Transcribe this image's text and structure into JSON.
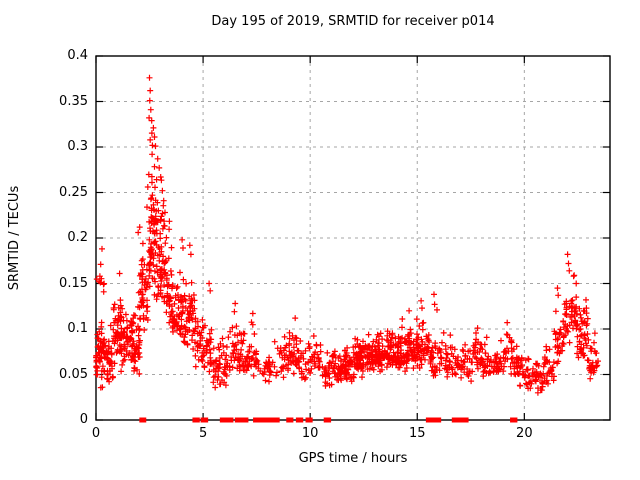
{
  "title": "Day 195 of 2019, SRMTID for receiver p014",
  "x_axis": {
    "label": "GPS time / hours",
    "tick_labels": [
      "0",
      "5",
      "10",
      "15",
      "20"
    ],
    "min": 0,
    "max": 24
  },
  "y_axis": {
    "label": "SRMTID / TECUs",
    "tick_labels": [
      "0",
      "0.05",
      "0.1",
      "0.15",
      "0.2",
      "0.25",
      "0.3",
      "0.35",
      "0.4"
    ],
    "min": 0,
    "max": 0.4
  },
  "colors": {
    "marker": "#ff0000",
    "grid": "#a6a6a6",
    "frame": "#000000",
    "background": "#ffffff",
    "text": "#000000"
  },
  "chart_data": {
    "type": "scatter",
    "title": "Day 195 of 2019, SRMTID for receiver p014",
    "xlabel": "GPS time / hours",
    "ylabel": "SRMTID / TECUs",
    "xlim": [
      0,
      24
    ],
    "ylim": [
      0,
      0.4
    ],
    "grid": true,
    "legend": "none",
    "marker": "plus",
    "zero_marker": "filled-square",
    "description": "Dense red + scatter of SRMTID vs GPS time; peak ~0.38 TECUs near hour 2.5-3, secondary rise ~0.18 near hour 22, baseline band 0.04-0.10 through midday; zero-valued samples drawn as filled squares on the x-axis.",
    "density_bands_format": [
      "x_start_hours",
      "x_end_hours",
      "n_points",
      "y_min",
      "y_max",
      "y_mode"
    ],
    "density_bands": [
      [
        0.0,
        0.3,
        45,
        0.025,
        0.13,
        0.065
      ],
      [
        0.0,
        0.45,
        6,
        0.125,
        0.185,
        0.15
      ],
      [
        0.3,
        0.8,
        50,
        0.03,
        0.115,
        0.065
      ],
      [
        0.8,
        1.25,
        55,
        0.045,
        0.155,
        0.095
      ],
      [
        1.25,
        1.7,
        45,
        0.045,
        0.135,
        0.085
      ],
      [
        1.7,
        2.1,
        45,
        0.04,
        0.145,
        0.085
      ],
      [
        1.95,
        2.2,
        10,
        0.12,
        0.205,
        0.16
      ],
      [
        2.1,
        2.45,
        35,
        0.075,
        0.22,
        0.13
      ],
      [
        2.45,
        2.65,
        40,
        0.1,
        0.37,
        0.2
      ],
      [
        2.65,
        2.95,
        45,
        0.11,
        0.34,
        0.21
      ],
      [
        2.95,
        3.25,
        45,
        0.1,
        0.3,
        0.175
      ],
      [
        3.25,
        3.55,
        35,
        0.085,
        0.245,
        0.14
      ],
      [
        3.55,
        3.85,
        30,
        0.075,
        0.2,
        0.115
      ],
      [
        3.85,
        4.25,
        40,
        0.075,
        0.185,
        0.11
      ],
      [
        4.25,
        4.6,
        35,
        0.065,
        0.185,
        0.115
      ],
      [
        4.6,
        5.0,
        30,
        0.055,
        0.13,
        0.085
      ],
      [
        5.0,
        5.45,
        28,
        0.045,
        0.12,
        0.075
      ],
      [
        5.45,
        5.8,
        25,
        0.03,
        0.09,
        0.055
      ],
      [
        5.8,
        6.25,
        25,
        0.03,
        0.115,
        0.06
      ],
      [
        6.25,
        6.65,
        25,
        0.035,
        0.115,
        0.07
      ],
      [
        6.65,
        7.05,
        25,
        0.04,
        0.11,
        0.07
      ],
      [
        7.05,
        7.5,
        30,
        0.04,
        0.115,
        0.07
      ],
      [
        7.5,
        8.05,
        14,
        0.03,
        0.085,
        0.055
      ],
      [
        8.05,
        8.55,
        18,
        0.035,
        0.1,
        0.06
      ],
      [
        8.55,
        9.05,
        28,
        0.04,
        0.105,
        0.07
      ],
      [
        9.05,
        9.55,
        30,
        0.04,
        0.108,
        0.07
      ],
      [
        9.55,
        10.05,
        24,
        0.035,
        0.095,
        0.06
      ],
      [
        10.05,
        10.55,
        24,
        0.035,
        0.1,
        0.065
      ],
      [
        10.55,
        11.05,
        26,
        0.03,
        0.085,
        0.055
      ],
      [
        11.05,
        11.55,
        40,
        0.035,
        0.085,
        0.055
      ],
      [
        11.55,
        12.05,
        45,
        0.035,
        0.09,
        0.06
      ],
      [
        12.05,
        12.55,
        50,
        0.04,
        0.095,
        0.065
      ],
      [
        12.55,
        13.05,
        50,
        0.045,
        0.1,
        0.07
      ],
      [
        13.05,
        13.55,
        52,
        0.045,
        0.105,
        0.07
      ],
      [
        13.55,
        14.05,
        52,
        0.045,
        0.11,
        0.072
      ],
      [
        14.05,
        14.55,
        52,
        0.045,
        0.112,
        0.072
      ],
      [
        14.55,
        15.05,
        50,
        0.05,
        0.118,
        0.075
      ],
      [
        15.05,
        15.55,
        40,
        0.05,
        0.12,
        0.078
      ],
      [
        15.55,
        16.05,
        28,
        0.04,
        0.105,
        0.065
      ],
      [
        16.05,
        16.55,
        28,
        0.04,
        0.1,
        0.065
      ],
      [
        16.55,
        17.05,
        24,
        0.04,
        0.095,
        0.06
      ],
      [
        17.05,
        17.55,
        24,
        0.04,
        0.095,
        0.06
      ],
      [
        17.55,
        18.05,
        30,
        0.045,
        0.1,
        0.068
      ],
      [
        18.05,
        18.55,
        28,
        0.04,
        0.095,
        0.06
      ],
      [
        18.55,
        19.05,
        28,
        0.04,
        0.1,
        0.065
      ],
      [
        19.05,
        19.55,
        28,
        0.04,
        0.105,
        0.068
      ],
      [
        19.55,
        20.05,
        28,
        0.03,
        0.085,
        0.055
      ],
      [
        20.05,
        20.55,
        26,
        0.028,
        0.08,
        0.05
      ],
      [
        20.55,
        20.95,
        24,
        0.022,
        0.075,
        0.045
      ],
      [
        20.95,
        21.4,
        26,
        0.03,
        0.1,
        0.06
      ],
      [
        21.4,
        21.85,
        30,
        0.05,
        0.14,
        0.09
      ],
      [
        21.85,
        22.45,
        42,
        0.07,
        0.165,
        0.115
      ],
      [
        22.45,
        23.0,
        45,
        0.05,
        0.14,
        0.09
      ],
      [
        23.0,
        23.45,
        30,
        0.035,
        0.108,
        0.068
      ]
    ],
    "notable_points": [
      [
        2.5,
        0.376
      ],
      [
        2.53,
        0.362
      ],
      [
        2.51,
        0.351
      ],
      [
        2.56,
        0.341
      ],
      [
        2.48,
        0.332
      ],
      [
        2.6,
        0.329
      ],
      [
        2.68,
        0.321
      ],
      [
        2.73,
        0.311
      ],
      [
        2.78,
        0.301
      ],
      [
        2.62,
        0.292
      ],
      [
        2.88,
        0.287
      ],
      [
        2.95,
        0.277
      ],
      [
        3.02,
        0.267
      ],
      [
        3.1,
        0.252
      ],
      [
        3.16,
        0.241
      ],
      [
        2.42,
        0.256
      ],
      [
        2.38,
        0.234
      ],
      [
        3.22,
        0.228
      ],
      [
        0.28,
        0.188
      ],
      [
        0.22,
        0.171
      ],
      [
        0.18,
        0.158
      ],
      [
        0.35,
        0.149
      ],
      [
        1.1,
        0.161
      ],
      [
        1.97,
        0.206
      ],
      [
        2.04,
        0.212
      ],
      [
        4.02,
        0.198
      ],
      [
        4.06,
        0.189
      ],
      [
        4.38,
        0.192
      ],
      [
        4.43,
        0.182
      ],
      [
        5.28,
        0.15
      ],
      [
        5.33,
        0.142
      ],
      [
        6.5,
        0.128
      ],
      [
        6.46,
        0.119
      ],
      [
        7.32,
        0.117
      ],
      [
        9.3,
        0.112
      ],
      [
        14.62,
        0.12
      ],
      [
        14.3,
        0.111
      ],
      [
        15.18,
        0.131
      ],
      [
        15.22,
        0.123
      ],
      [
        15.78,
        0.138
      ],
      [
        15.81,
        0.127
      ],
      [
        15.92,
        0.121
      ],
      [
        17.82,
        0.101
      ],
      [
        19.2,
        0.107
      ],
      [
        22.02,
        0.182
      ],
      [
        22.06,
        0.172
      ],
      [
        22.1,
        0.164
      ],
      [
        21.55,
        0.145
      ],
      [
        21.58,
        0.137
      ],
      [
        22.3,
        0.158
      ],
      [
        22.42,
        0.15
      ],
      [
        22.88,
        0.132
      ]
    ],
    "zero_value_runs_hours": [
      [
        2.14,
        2.23
      ],
      [
        4.62,
        4.73
      ],
      [
        5.0,
        5.12
      ],
      [
        5.9,
        6.02
      ],
      [
        6.2,
        6.3
      ],
      [
        6.6,
        6.73
      ],
      [
        6.9,
        7.0
      ],
      [
        7.45,
        7.97
      ],
      [
        8.05,
        8.16
      ],
      [
        8.35,
        8.46
      ],
      [
        9.0,
        9.1
      ],
      [
        9.45,
        9.56
      ],
      [
        9.9,
        10.0
      ],
      [
        10.75,
        10.86
      ],
      [
        15.52,
        15.66
      ],
      [
        15.85,
        16.0
      ],
      [
        16.73,
        16.78
      ],
      [
        16.83,
        16.88
      ],
      [
        16.98,
        17.28
      ],
      [
        19.45,
        19.56
      ]
    ]
  }
}
